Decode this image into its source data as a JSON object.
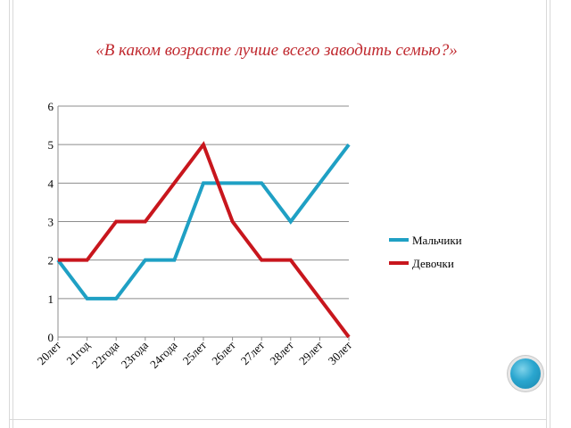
{
  "title": "«В каком возрасте лучше всего заводить семью?»",
  "chart_data": {
    "type": "line",
    "title": "«В каком возрасте лучше всего заводить семью?»",
    "categories": [
      "20лет",
      "21год",
      "22года",
      "23года",
      "24года",
      "25лет",
      "26лет",
      "27лет",
      "28лет",
      "29лет",
      "30лет"
    ],
    "series": [
      {
        "name": "Мальчики",
        "color": "#1fa0c4",
        "values": [
          2,
          1,
          1,
          2,
          2,
          4,
          4,
          4,
          3,
          4,
          5
        ]
      },
      {
        "name": "Девочки",
        "color": "#c8161d",
        "values": [
          2,
          2,
          3,
          3,
          4,
          5,
          3,
          2,
          2,
          1,
          0
        ]
      }
    ],
    "ylim": [
      0,
      6
    ],
    "yticks": [
      0,
      1,
      2,
      3,
      4,
      5,
      6
    ],
    "grid": true,
    "legend": "right"
  }
}
